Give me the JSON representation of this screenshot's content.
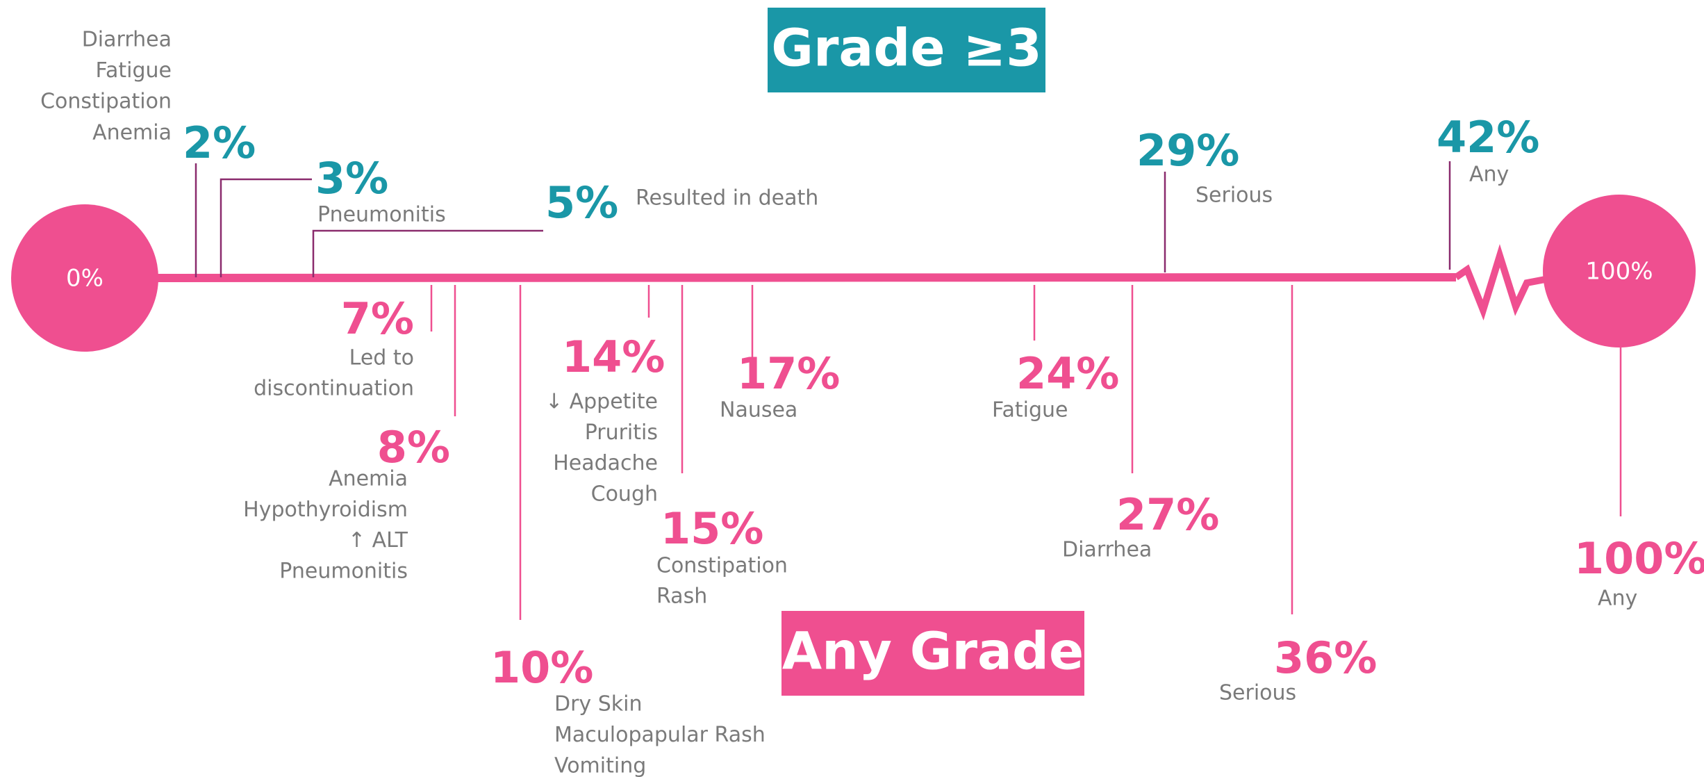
{
  "grade3_label": "Grade ≥3",
  "any_grade_label": "Any Grade",
  "start_label": "0%",
  "end_label": "100%",
  "grade3_items": [
    {
      "percent": "2%",
      "labels": [
        "Diarrhea",
        "Fatigue",
        "Constipation",
        "Anemia"
      ]
    },
    {
      "percent": "3%",
      "labels": [
        "Pneumonitis"
      ]
    },
    {
      "percent": "5%",
      "labels": [
        "Resulted in death"
      ]
    },
    {
      "percent": "29%",
      "labels": [
        "Serious"
      ]
    },
    {
      "percent": "42%",
      "labels": [
        "Any"
      ]
    }
  ],
  "any_grade_items": [
    {
      "percent": "7%",
      "labels": [
        "Led to",
        "discontinuation"
      ]
    },
    {
      "percent": "8%",
      "labels": [
        "Anemia",
        "Hypothyroidism",
        "↑  ALT",
        "Pneumonitis"
      ]
    },
    {
      "percent": "10%",
      "labels": [
        "Dry Skin",
        "Maculopapular Rash",
        "Vomiting"
      ]
    },
    {
      "percent": "14%",
      "labels": [
        "↓  Appetite",
        "Pruritis",
        "Headache",
        "Cough"
      ]
    },
    {
      "percent": "15%",
      "labels": [
        "Constipation",
        "Rash"
      ]
    },
    {
      "percent": "17%",
      "labels": [
        "Nausea"
      ]
    },
    {
      "percent": "24%",
      "labels": [
        "Fatigue"
      ]
    },
    {
      "percent": "27%",
      "labels": [
        "Diarrhea"
      ]
    },
    {
      "percent": "36%",
      "labels": [
        "Serious"
      ]
    },
    {
      "percent": "100%",
      "labels": [
        "Any"
      ]
    }
  ]
}
